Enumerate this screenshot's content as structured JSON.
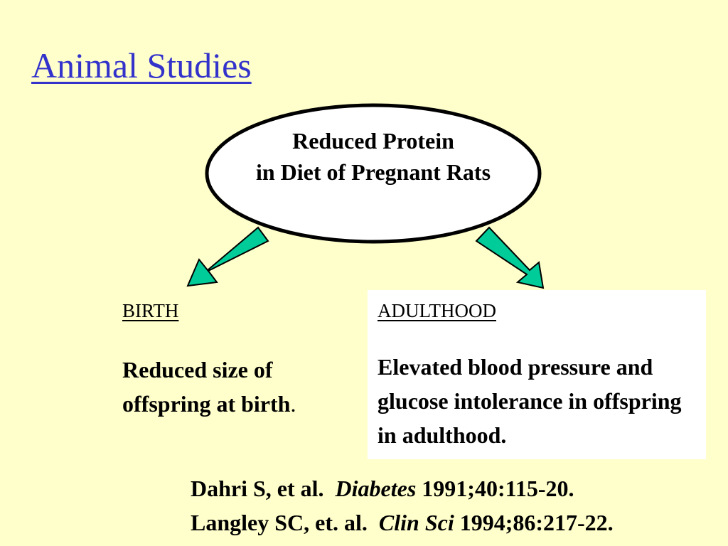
{
  "slide": {
    "title": "Animal Studies",
    "center_node": {
      "line1": "Reduced Protein",
      "line2": "in Diet of Pregnant Rats"
    },
    "left_outcome": {
      "heading": "BIRTH",
      "body": "Reduced size of offspring at birth",
      "body_suffix": "."
    },
    "right_outcome": {
      "heading": "ADULTHOOD",
      "body": "Elevated blood pressure and glucose intolerance in offspring in adulthood."
    },
    "references": [
      {
        "authors": "Dahri S, et al.",
        "journal": "Diabetes",
        "citation": "1991;40:115-20."
      },
      {
        "authors": "Langley SC, et. al.",
        "journal": "Clin Sci",
        "citation": "1994;86:217-22."
      }
    ]
  },
  "colors": {
    "background": "#ffffcc",
    "title": "#3333cc",
    "arrow_fill": "#00cc99",
    "arrow_stroke": "#000000",
    "ellipse_fill": "#ffffff",
    "outcome_box_fill": "#ffffff"
  }
}
